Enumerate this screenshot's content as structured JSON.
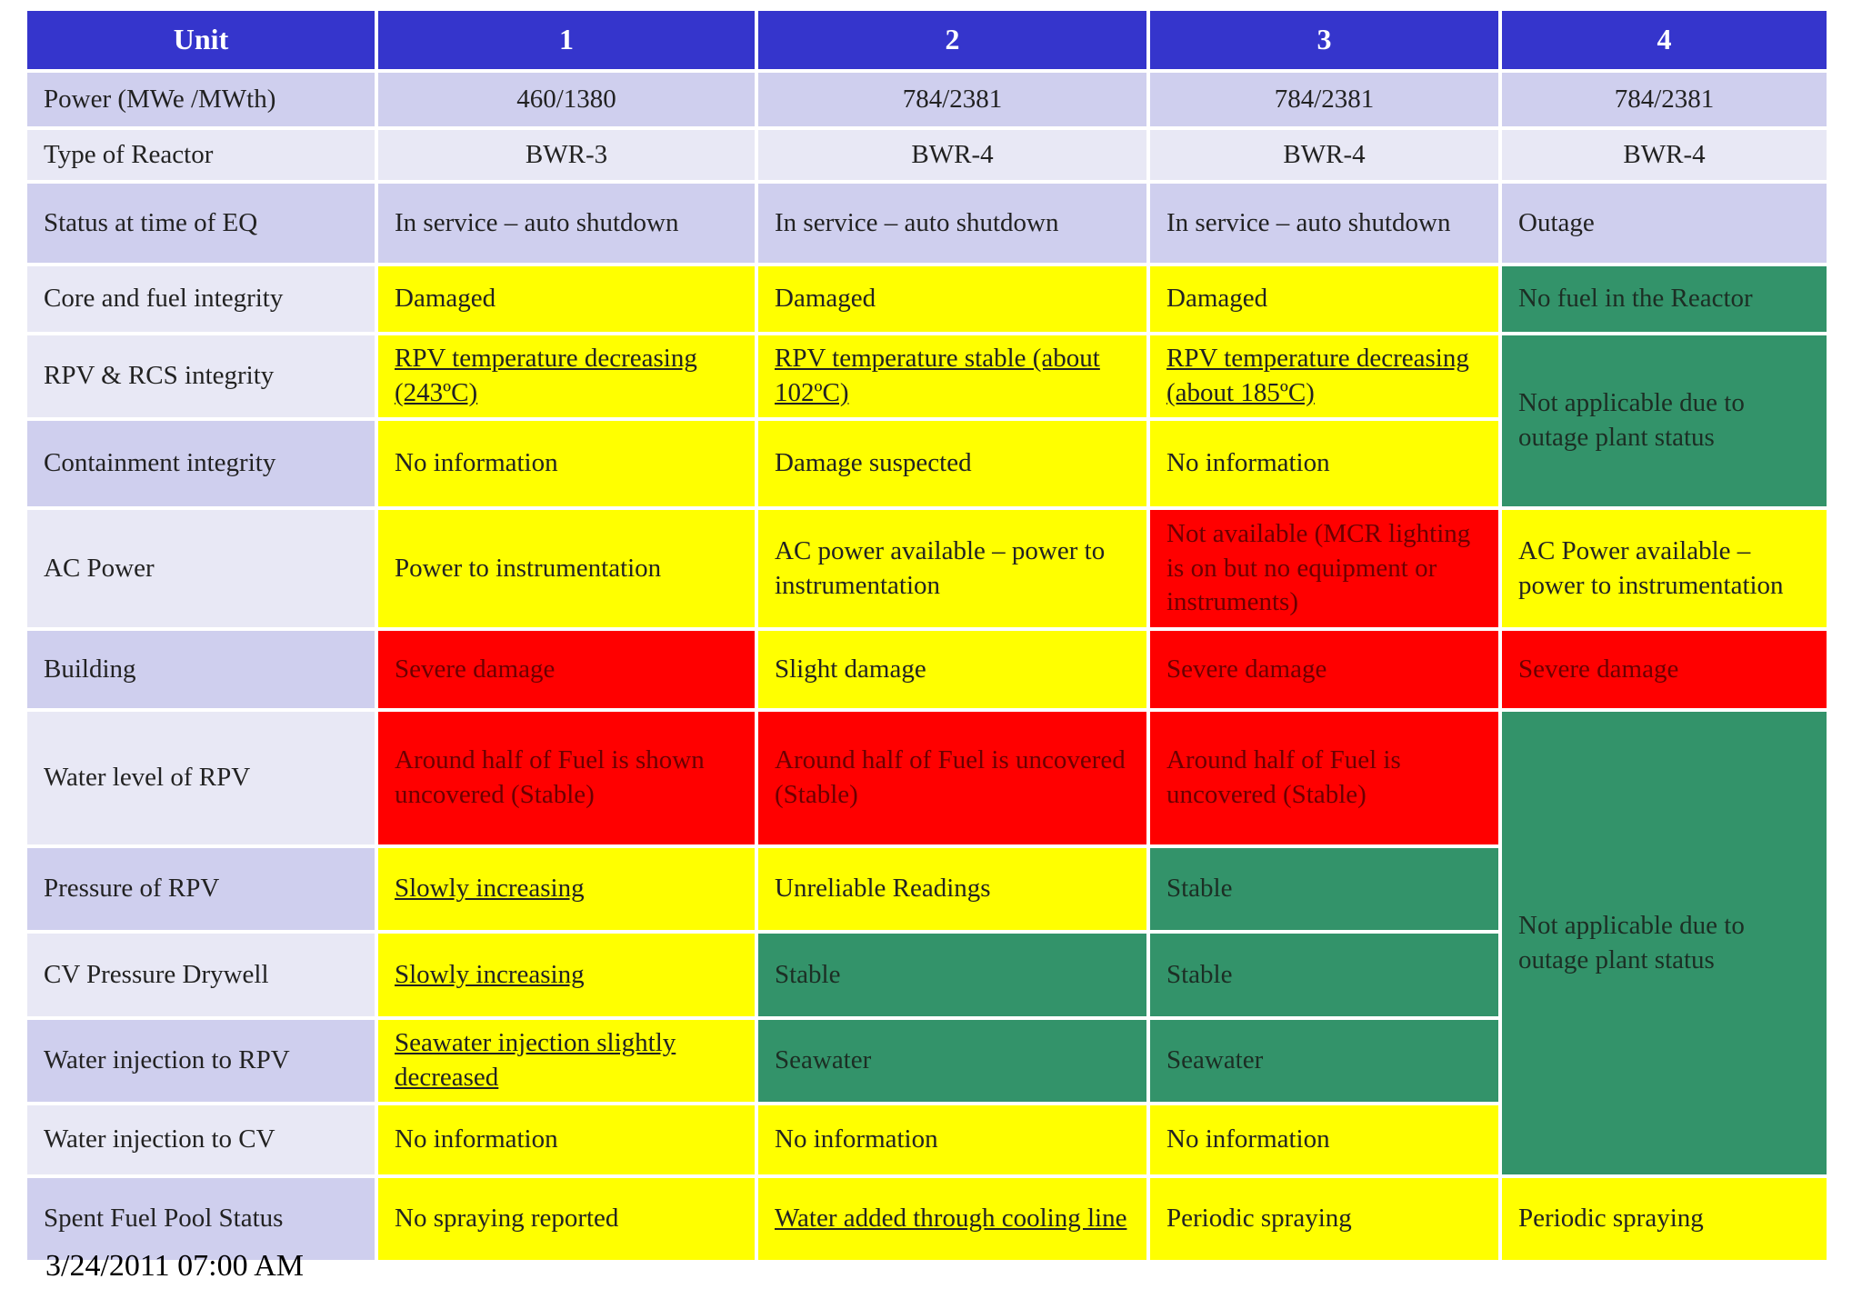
{
  "table": {
    "header": [
      "Unit",
      "1",
      "2",
      "3",
      "4"
    ],
    "rows": [
      {
        "label": "Power (MWe /MWth)",
        "label_color": "#cfcfee",
        "align": "center",
        "cells": [
          {
            "text": "460/1380",
            "color": "#cfcfee"
          },
          {
            "text": "784/2381",
            "color": "#cfcfee"
          },
          {
            "text": "784/2381",
            "color": "#cfcfee"
          },
          {
            "text": "784/2381",
            "color": "#cfcfee"
          }
        ]
      },
      {
        "label": "Type of Reactor",
        "label_color": "#e8e8f5",
        "align": "center",
        "cells": [
          {
            "text": "BWR-3",
            "color": "#e8e8f5"
          },
          {
            "text": "BWR-4",
            "color": "#e8e8f5"
          },
          {
            "text": "BWR-4",
            "color": "#e8e8f5"
          },
          {
            "text": "BWR-4",
            "color": "#e8e8f5"
          }
        ]
      },
      {
        "label": "Status at time of EQ",
        "label_color": "#cfcfee",
        "cells": [
          {
            "text": "In service – auto shutdown",
            "color": "#cfcfee"
          },
          {
            "text": "In service – auto shutdown",
            "color": "#cfcfee"
          },
          {
            "text": "In service – auto shutdown",
            "color": "#cfcfee"
          },
          {
            "text": "Outage",
            "color": "#cfcfee"
          }
        ]
      },
      {
        "label": "Core and fuel integrity",
        "label_color": "#e8e8f5",
        "cells": [
          {
            "text": "Damaged",
            "color": "#ffff00"
          },
          {
            "text": "Damaged",
            "color": "#ffff00"
          },
          {
            "text": "Damaged",
            "color": "#ffff00"
          },
          {
            "text": "No fuel in the Reactor",
            "color": "#33936a"
          }
        ]
      },
      {
        "label": "RPV & RCS integrity",
        "label_color": "#e8e8f5",
        "cells": [
          {
            "text": "RPV temperature decreasing (243ºC)",
            "color": "#ffff00",
            "underline": true
          },
          {
            "text": "RPV temperature stable (about 102ºC)",
            "color": "#ffff00",
            "underline": true
          },
          {
            "text": "RPV temperature decreasing (about 185ºC)",
            "color": "#ffff00",
            "underline": true
          },
          {
            "text": "Not applicable due to outage plant status",
            "color": "#33936a"
          }
        ]
      },
      {
        "label": "Containment integrity",
        "label_color": "#cfcfee",
        "cells": [
          {
            "text": "No information",
            "color": "#ffff00"
          },
          {
            "text": "Damage suspected",
            "color": "#ffff00"
          },
          {
            "text": "No information",
            "color": "#ffff00"
          }
        ]
      },
      {
        "label": "AC Power",
        "label_color": "#e8e8f5",
        "cells": [
          {
            "text": "Power to instrumentation",
            "color": "#ffff00"
          },
          {
            "text": "AC power available – power to instrumentation",
            "color": "#ffff00"
          },
          {
            "text": "Not available (MCR lighting is on but no equipment or instruments)",
            "color": "#ff0000"
          },
          {
            "text": "AC Power available – power to instrumentation",
            "color": "#ffff00"
          }
        ]
      },
      {
        "label": "Building",
        "label_color": "#cfcfee",
        "cells": [
          {
            "text": "Severe damage",
            "color": "#ff0000"
          },
          {
            "text": "Slight damage",
            "color": "#ffff00"
          },
          {
            "text": "Severe damage",
            "color": "#ff0000"
          },
          {
            "text": "Severe damage",
            "color": "#ff0000"
          }
        ]
      },
      {
        "label": "Water level of RPV",
        "label_color": "#e8e8f5",
        "cells": [
          {
            "text": "Around half of Fuel is shown uncovered (Stable)",
            "color": "#ff0000"
          },
          {
            "text": "Around half of Fuel is uncovered (Stable)",
            "color": "#ff0000"
          },
          {
            "text": "Around half of Fuel is uncovered (Stable)",
            "color": "#ff0000"
          },
          {
            "text": "Not applicable due to outage plant status",
            "color": "#33936a"
          }
        ]
      },
      {
        "label": "Pressure of RPV",
        "label_color": "#cfcfee",
        "cells": [
          {
            "text": "Slowly increasing",
            "color": "#ffff00",
            "underline": true
          },
          {
            "text": "Unreliable Readings",
            "color": "#ffff00"
          },
          {
            "text": "Stable",
            "color": "#33936a"
          }
        ]
      },
      {
        "label": "CV Pressure Drywell",
        "label_color": "#e8e8f5",
        "cells": [
          {
            "text": "Slowly increasing",
            "color": "#ffff00",
            "underline": true
          },
          {
            "text": "Stable",
            "color": "#33936a"
          },
          {
            "text": "Stable",
            "color": "#33936a"
          }
        ]
      },
      {
        "label": "Water injection to RPV",
        "label_color": "#cfcfee",
        "cells": [
          {
            "text": "Seawater injection slightly decreased",
            "color": "#ffff00",
            "underline": true
          },
          {
            "text": "Seawater",
            "color": "#33936a"
          },
          {
            "text": "Seawater",
            "color": "#33936a"
          }
        ]
      },
      {
        "label": "Water injection to CV",
        "label_color": "#e8e8f5",
        "cells": [
          {
            "text": "No information",
            "color": "#ffff00"
          },
          {
            "text": "No information",
            "color": "#ffff00"
          },
          {
            "text": "No information",
            "color": "#ffff00"
          }
        ]
      },
      {
        "label": "Spent Fuel Pool Status",
        "label_color": "#cfcfee",
        "cells": [
          {
            "text": "No spraying reported",
            "color": "#ffff00"
          },
          {
            "text": "Water added through cooling line",
            "color": "#ffff00",
            "underline": true
          },
          {
            "text": "Periodic spraying",
            "color": "#ffff00"
          },
          {
            "text": "Periodic spraying",
            "color": "#ffff00"
          }
        ]
      }
    ]
  },
  "footer": {
    "date": "3/24/2011 07:00 AM"
  }
}
